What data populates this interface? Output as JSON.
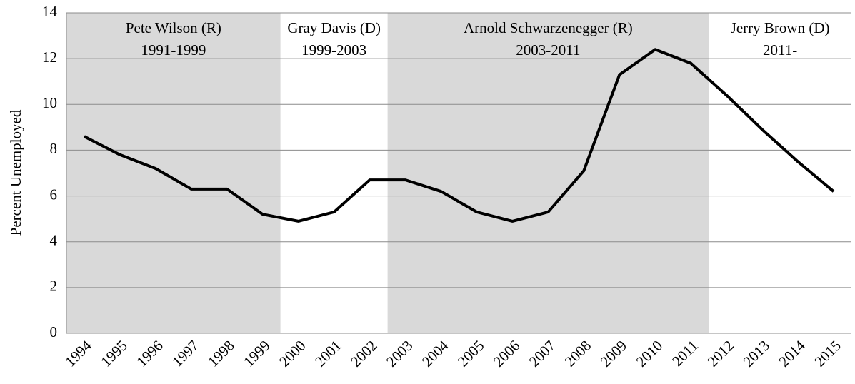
{
  "chart_data": {
    "type": "line",
    "y_label": "Percent Unemployed",
    "categories": [
      "1994",
      "1995",
      "1996",
      "1997",
      "1998",
      "1999",
      "2000",
      "2001",
      "2002",
      "2003",
      "2004",
      "2005",
      "2006",
      "2007",
      "2008",
      "2009",
      "2010",
      "2011",
      "2012",
      "2013",
      "2014",
      "2015"
    ],
    "series": [
      {
        "color": "#000000",
        "values": [
          8.6,
          7.8,
          7.2,
          6.3,
          6.3,
          5.2,
          4.9,
          5.3,
          6.7,
          6.7,
          6.2,
          5.3,
          4.9,
          5.3,
          7.1,
          11.3,
          12.4,
          11.8,
          10.4,
          8.9,
          7.5,
          6.2
        ]
      }
    ],
    "ylim": [
      0,
      14
    ],
    "yticks": [
      0,
      2,
      4,
      6,
      8,
      10,
      12,
      14
    ],
    "grid": true,
    "regions": [
      {
        "name": "Pete Wilson (R)",
        "years": "1991-1999",
        "from": "1994",
        "to": "1999",
        "color": "#d9d9d9"
      },
      {
        "name": "Gray Davis (D)",
        "years": "1999-2003",
        "from": "2000",
        "to": "2002",
        "color": "#ffffff"
      },
      {
        "name": "Arnold Schwarzenegger  (R)",
        "years": "2003-2011",
        "from": "2003",
        "to": "2011",
        "color": "#d9d9d9"
      },
      {
        "name": "Jerry Brown (D)",
        "years": "2011-",
        "from": "2012",
        "to": "2015",
        "color": "#ffffff"
      }
    ]
  }
}
